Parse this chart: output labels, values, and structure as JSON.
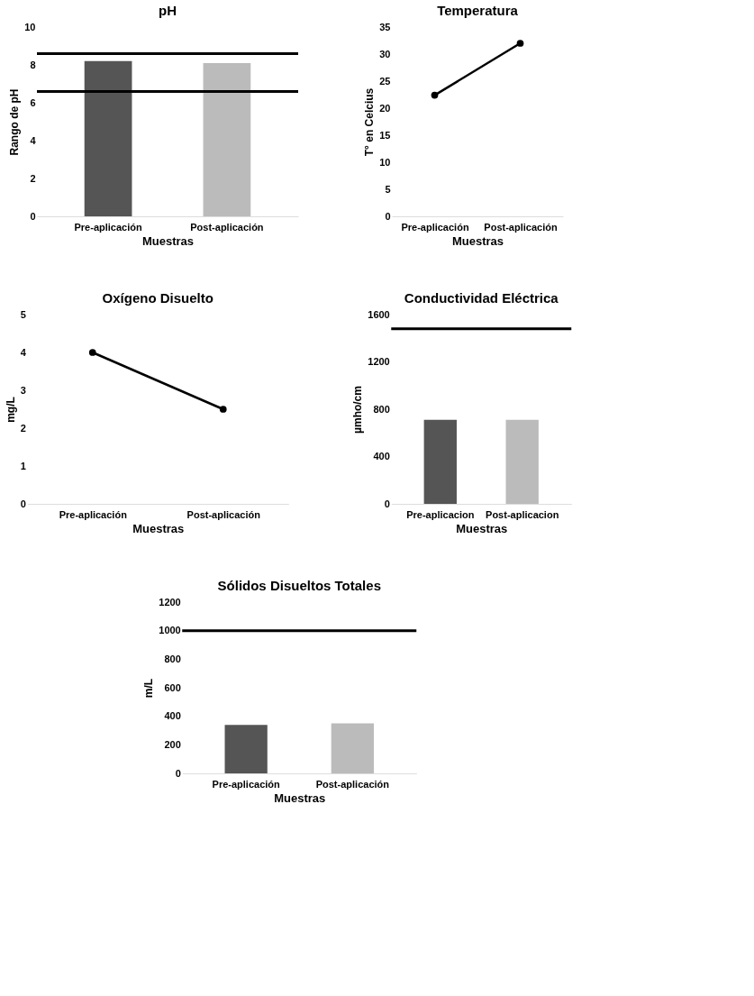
{
  "chart_data": [
    {
      "type": "bar",
      "title": "pH",
      "xlabel": "Muestras",
      "ylabel": "Rango de pH",
      "categories": [
        "Pre-aplicación",
        "Post-aplicación"
      ],
      "values": [
        8.2,
        8.1
      ],
      "colors": [
        "#555555",
        "#bbbbbb"
      ],
      "ylim": [
        0,
        10
      ],
      "yticks": [
        0,
        2,
        4,
        6,
        8,
        10
      ],
      "ref_lines": [
        {
          "axis": "y",
          "value": 8.6,
          "color": "#000000"
        },
        {
          "axis": "y",
          "value": 6.6,
          "color": "#000000"
        }
      ],
      "grid": false
    },
    {
      "type": "line",
      "title": "Temperatura",
      "xlabel": "Muestras",
      "ylabel": "T° en Celcius",
      "categories": [
        "Pre-aplicación",
        "Post-aplicación"
      ],
      "series": [
        {
          "color": "#000000",
          "values": [
            22.4,
            32
          ]
        }
      ],
      "ylim": [
        0,
        35
      ],
      "yticks": [
        0,
        5,
        10,
        15,
        20,
        25,
        30,
        35
      ],
      "marker": "circle",
      "line_style": "solid",
      "grid": false
    },
    {
      "type": "line",
      "title": "Oxígeno Disuelto",
      "xlabel": "Muestras",
      "ylabel": "mg/L",
      "categories": [
        "Pre-aplicación",
        "Post-aplicación"
      ],
      "series": [
        {
          "color": "#000000",
          "values": [
            4.0,
            2.5
          ]
        }
      ],
      "ylim": [
        0,
        5
      ],
      "yticks": [
        0,
        1,
        2,
        3,
        4,
        5
      ],
      "marker": "circle",
      "line_style": "solid",
      "grid": false
    },
    {
      "type": "bar",
      "title": "Conductividad Eléctrica",
      "xlabel": "Muestras",
      "ylabel": "µmho/cm",
      "categories": [
        "Pre-aplicacion",
        "Post-aplicacion"
      ],
      "values": [
        710,
        710
      ],
      "colors": [
        "#555555",
        "#bbbbbb"
      ],
      "ylim": [
        0,
        1600
      ],
      "yticks": [
        0,
        400,
        800,
        1200,
        1600
      ],
      "ref_lines": [
        {
          "axis": "y",
          "value": 1480,
          "color": "#000000"
        }
      ],
      "grid": false
    },
    {
      "type": "bar",
      "title": "Sólidos Disueltos Totales",
      "xlabel": "Muestras",
      "ylabel": "m/L",
      "categories": [
        "Pre-aplicación",
        "Post-aplicación"
      ],
      "values": [
        340,
        350
      ],
      "colors": [
        "#555555",
        "#bbbbbb"
      ],
      "ylim": [
        0,
        1200
      ],
      "yticks": [
        0,
        200,
        400,
        600,
        800,
        1000,
        1200
      ],
      "ref_lines": [
        {
          "axis": "y",
          "value": 1000,
          "color": "#000000"
        }
      ],
      "grid": false
    }
  ]
}
